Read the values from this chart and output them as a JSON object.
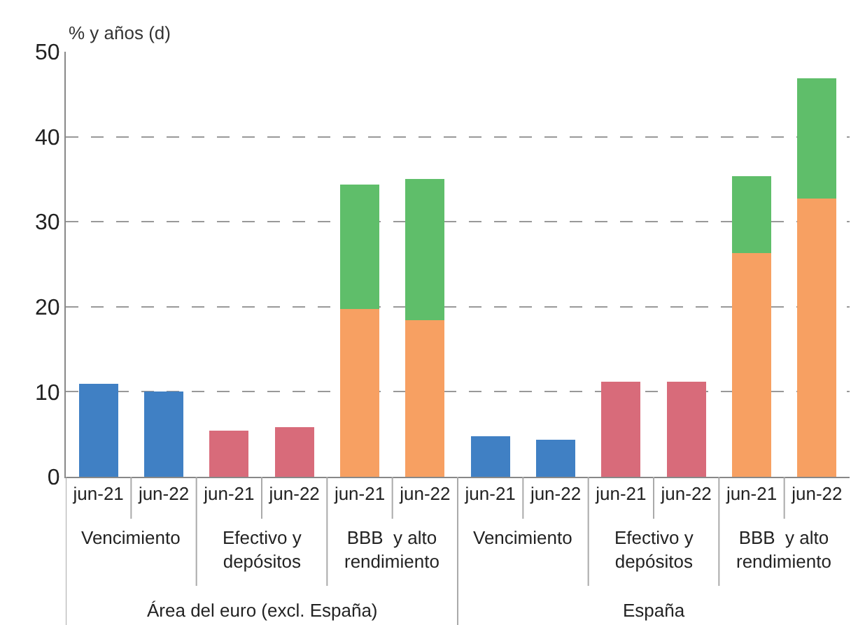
{
  "chart_data": {
    "type": "bar",
    "stacked": true,
    "ylabel": "% y años (d)",
    "categories": [
      "jun-21",
      "jun-22",
      "jun-21",
      "jun-22",
      "jun-21",
      "jun-22",
      "jun-21",
      "jun-22",
      "jun-21",
      "jun-22",
      "jun-21",
      "jun-22"
    ],
    "series": [
      {
        "color": "#4080c4",
        "values": [
          10.9,
          10.0,
          null,
          null,
          null,
          null,
          4.8,
          4.4,
          null,
          null,
          null,
          null
        ]
      },
      {
        "color": "#d86b7a",
        "values": [
          null,
          null,
          5.4,
          5.8,
          null,
          null,
          null,
          null,
          11.2,
          11.2,
          null,
          null
        ]
      },
      {
        "color": "#f7a062",
        "values": [
          null,
          null,
          null,
          null,
          19.7,
          18.4,
          null,
          null,
          null,
          null,
          26.3,
          32.7
        ]
      },
      {
        "color": "#5fbe6a",
        "values": [
          null,
          null,
          null,
          null,
          14.7,
          16.6,
          null,
          null,
          null,
          null,
          9.1,
          14.2
        ]
      }
    ],
    "annotations": [
      "Vencimiento",
      "Efectivo y\ndepósitos",
      "BBB  y alto\nrendimiento",
      "Vencimiento",
      "Efectivo y\ndepósitos",
      "BBB  y alto\nrendimiento",
      "Área del euro (excl. España)",
      "España"
    ],
    "ylim": [
      0,
      50
    ],
    "yticks": [
      0,
      10,
      20,
      30,
      40,
      50
    ],
    "grid": "y",
    "legend": false
  }
}
